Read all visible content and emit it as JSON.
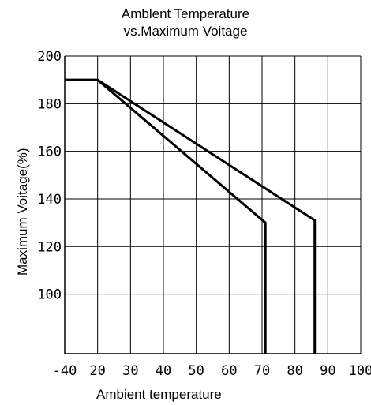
{
  "chart_data": {
    "type": "line",
    "title_lines": [
      "Amblent Temperature",
      "vs.Maximum Voitage"
    ],
    "xlabel": "Ambient temperature",
    "ylabel": "Maximum Voitage(%)",
    "x_ticks": [
      "-40",
      "20",
      "30",
      "40",
      "50",
      "60",
      "70",
      "80",
      "90",
      "100"
    ],
    "y_ticks": [
      "100",
      "120",
      "140",
      "160",
      "180",
      "200"
    ],
    "ylim": [
      75,
      200
    ],
    "grid": true,
    "series": [
      {
        "x": [
          -40,
          20,
          71,
          71
        ],
        "y": [
          190,
          190,
          130,
          75
        ]
      },
      {
        "x": [
          -40,
          20,
          86,
          86
        ],
        "y": [
          190,
          190,
          131,
          75
        ]
      }
    ],
    "colors": {
      "line": "#000000",
      "grid": "#000000"
    }
  }
}
